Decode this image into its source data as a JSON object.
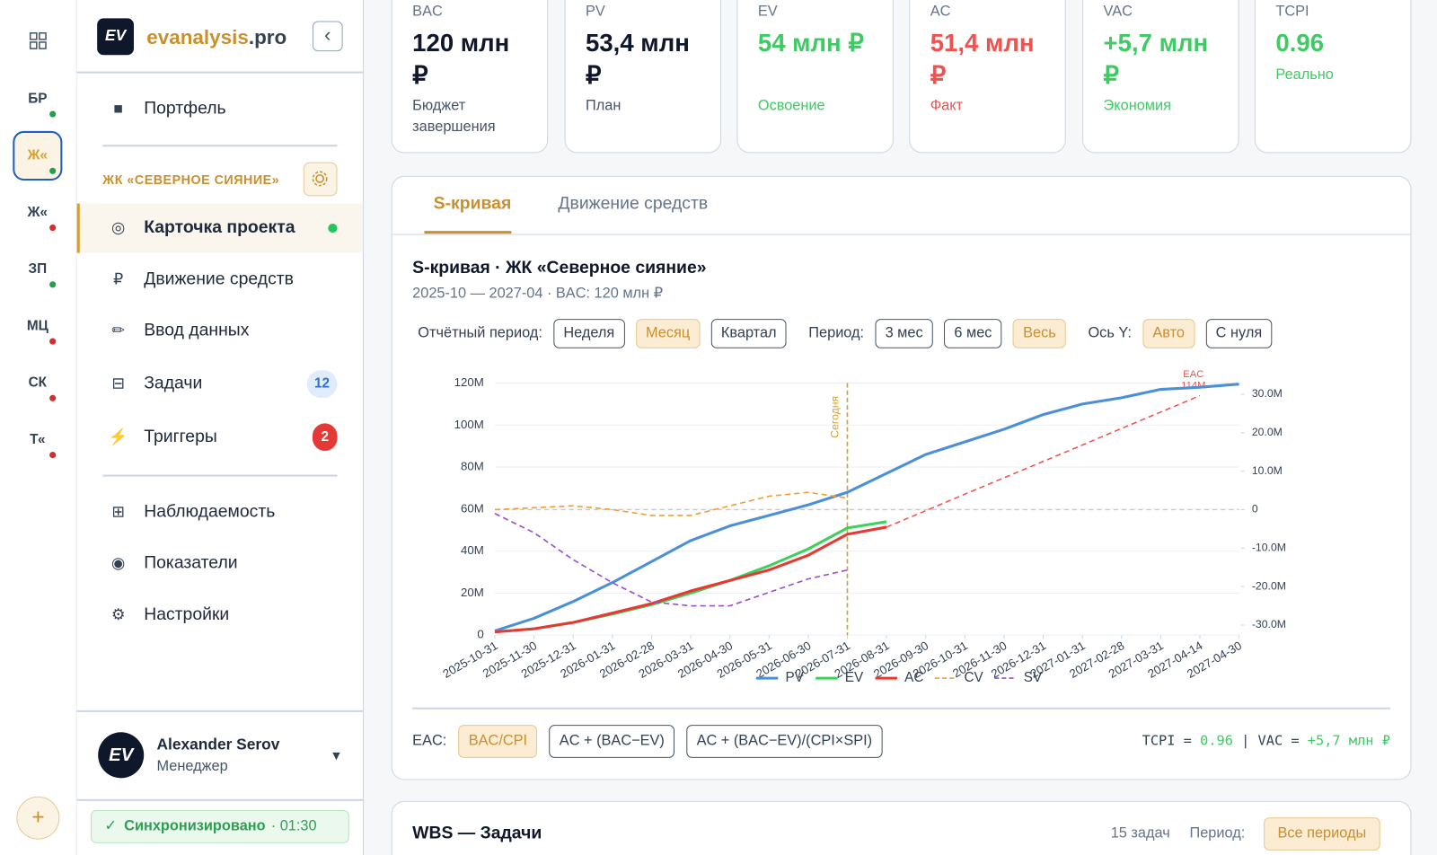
{
  "rail": {
    "items": [
      {
        "label": "БР",
        "dot": "green"
      },
      {
        "label": "Ж«",
        "dot": "green",
        "active": true
      },
      {
        "label": "Ж«",
        "dot": "red"
      },
      {
        "label": "ЗП",
        "dot": "green"
      },
      {
        "label": "МЦ",
        "dot": "red"
      },
      {
        "label": "СК",
        "dot": "red"
      },
      {
        "label": "Т«",
        "dot": "red"
      }
    ],
    "add": "+"
  },
  "sidebar": {
    "logo": "EV",
    "brand": "evanalysis",
    "brand_suffix": ".pro",
    "collapse": "‹",
    "nav": [
      {
        "icon": "■",
        "label": "Портфель"
      }
    ],
    "project": "ЖК «СЕВЕРНОЕ СИЯНИЕ»",
    "project_nav": [
      {
        "icon": "◎",
        "label": "Карточка проекта",
        "active": true,
        "dot": "green"
      },
      {
        "icon": "₽",
        "label": "Движение средств"
      },
      {
        "icon": "✏",
        "label": "Ввод данных"
      },
      {
        "icon": "⊟",
        "label": "Задачи",
        "badge": 12,
        "badge_color": "blue"
      },
      {
        "icon": "⚡",
        "label": "Триггеры",
        "badge": 2,
        "badge_color": "red"
      }
    ],
    "footer_nav": [
      {
        "icon": "⊞",
        "label": "Наблюдаемость"
      },
      {
        "icon": "◉",
        "label": "Показатели"
      },
      {
        "icon": "⚙",
        "label": "Настройки"
      }
    ],
    "user": {
      "avatar": "EV",
      "name": "Alexander Serov",
      "role": "Менеджер",
      "menu": "▼"
    },
    "sync": {
      "icon": "✓",
      "status": "Синхронизировано",
      "time": "· 01:30"
    }
  },
  "kpis": [
    {
      "label": "BAC",
      "value": "120 млн ₽",
      "caption": "Бюджет завершения",
      "tone": "dark"
    },
    {
      "label": "PV",
      "value": "53,4 млн ₽",
      "caption": "План",
      "tone": "dark"
    },
    {
      "label": "EV",
      "value": "54 млн ₽",
      "caption": "Освоение",
      "tone": "green"
    },
    {
      "label": "AC",
      "value": "51,4 млн ₽",
      "caption": "Факт",
      "tone": "red"
    },
    {
      "label": "VAC",
      "value": "+5,7 млн ₽",
      "caption": "Экономия",
      "tone": "green"
    },
    {
      "label": "TCPI",
      "value": "0.96",
      "caption": "Реально",
      "tone": "green"
    }
  ],
  "tabs": {
    "items": [
      "S-кривая",
      "Движение средств"
    ],
    "active": 0
  },
  "chart_card": {
    "title": "S-кривая · ЖК «Северное сияние»",
    "subtitle": "2025-10 — 2027-04 · BAC: 120 млн ₽",
    "controls": [
      {
        "label": "Отчётный период:",
        "options": [
          "Неделя",
          "Месяц",
          "Квартал"
        ],
        "active": 1
      },
      {
        "label": "Период:",
        "options": [
          "3 мес",
          "6 мес",
          "Весь"
        ],
        "active": 2
      },
      {
        "label": "Ось Y:",
        "options": [
          "Авто",
          "С нуля"
        ],
        "active": 0
      }
    ],
    "eac": {
      "label": "EAC:",
      "options": [
        "BAC/CPI",
        "AC + (BAC−EV)",
        "AC + (BAC−EV)/(CPI×SPI)"
      ],
      "active": 0
    },
    "summary": {
      "tcpi_label": "TCPI =",
      "tcpi": "0.96",
      "separator": "|",
      "vac_label": "VAC =",
      "vac": "+5,7 млн ₽"
    }
  },
  "chart_data": {
    "type": "line",
    "categories": [
      "2025-10-31",
      "2025-11-30",
      "2025-12-31",
      "2026-01-31",
      "2026-02-28",
      "2026-03-31",
      "2026-04-30",
      "2026-05-31",
      "2026-06-30",
      "2026-07-31",
      "2026-08-31",
      "2026-09-30",
      "2026-10-31",
      "2026-11-30",
      "2026-12-31",
      "2027-01-31",
      "2027-02-28",
      "2027-03-31",
      "2027-04-14",
      "2027-04-30"
    ],
    "series": [
      {
        "name": "PV",
        "color": "#4a8fd8",
        "values": [
          2,
          8,
          16,
          25,
          35,
          45,
          52,
          57,
          62,
          68,
          77,
          86,
          92,
          98,
          105,
          110,
          113,
          117,
          118,
          119.5
        ]
      },
      {
        "name": "EV",
        "color": "#3ecf5c",
        "values": [
          1.5,
          3,
          6,
          10,
          14.5,
          20,
          26,
          33,
          41,
          51,
          54,
          null,
          null,
          null,
          null,
          null,
          null,
          null,
          null,
          null
        ]
      },
      {
        "name": "AC",
        "color": "#e53935",
        "values": [
          1.5,
          3,
          6,
          10.5,
          15,
          21,
          26,
          31,
          38,
          48,
          51.4,
          null,
          null,
          null,
          null,
          null,
          null,
          null,
          null,
          null
        ]
      },
      {
        "name": "CV",
        "color": "#f0a030",
        "dashed": true,
        "axis": "y2",
        "values": [
          0,
          0.5,
          1,
          0,
          -1.5,
          -1.5,
          1,
          3.5,
          4.5,
          3,
          null,
          null,
          null,
          null,
          null,
          null,
          null,
          null,
          null,
          null
        ]
      },
      {
        "name": "SV",
        "color": "#9b4fc8",
        "dashed": true,
        "axis": "y2",
        "values": [
          -1,
          -6,
          -13,
          -19,
          -24,
          -25,
          -25,
          -21.5,
          -18,
          -15.7,
          null,
          null,
          null,
          null,
          null,
          null,
          null,
          null,
          null,
          null
        ]
      }
    ],
    "forecast": {
      "name": "EAC",
      "value_label": "114M",
      "color": "#ef5350",
      "values": [
        null,
        null,
        null,
        null,
        null,
        null,
        null,
        null,
        null,
        null,
        51.4,
        59.2,
        67.1,
        74.9,
        82.7,
        90.5,
        98.4,
        106.2,
        114,
        null
      ]
    },
    "today": {
      "label": "Сегодня",
      "category": "2026-07-31",
      "color": "#d4a030"
    },
    "ylim": [
      0,
      120
    ],
    "yticks": [
      0,
      {
        "value": 20,
        "label": "20M"
      },
      {
        "value": 40,
        "label": "40M"
      },
      {
        "value": 60,
        "label": "60M"
      },
      {
        "value": 80,
        "label": "80M"
      },
      {
        "value": 100,
        "label": "100M"
      },
      {
        "value": 120,
        "label": "120M"
      }
    ],
    "y2lim": [
      -32.6,
      32.9
    ],
    "y2ticks": [
      {
        "value": 30,
        "label": "30.0M"
      },
      {
        "value": 20,
        "label": "20.0M"
      },
      {
        "value": 10,
        "label": "10.0M"
      },
      0,
      {
        "value": -10,
        "label": "-10.0M"
      },
      {
        "value": -20,
        "label": "-20.0M"
      },
      {
        "value": -30,
        "label": "-30.0M"
      }
    ],
    "grid": true,
    "y2_zero_line": true,
    "legend": "bottom"
  },
  "wbs": {
    "title": "WBS — Задачи",
    "count": "15 задач",
    "period_label": "Период:",
    "period": "Все периоды"
  }
}
